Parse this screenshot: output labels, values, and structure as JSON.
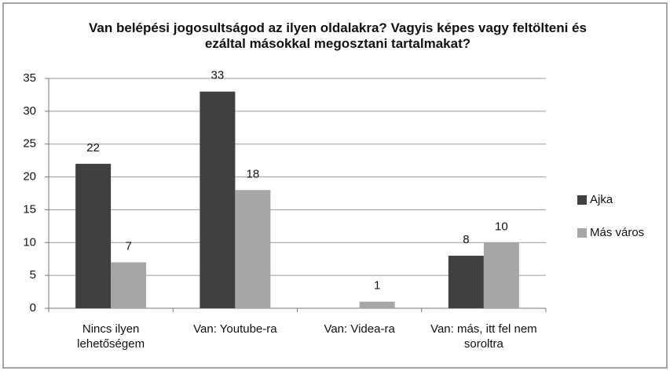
{
  "chart_data": {
    "type": "bar",
    "title": "Van belépési jogosultságod az ilyen oldalakra? Vagyis képes vagy feltölteni és ezáltal másokkal megosztani tartalmakat?",
    "categories": [
      "Nincs ilyen lehetőségem",
      "Van: Youtube-ra",
      "Van: Videa-ra",
      "Van: más, itt fel nem soroltra"
    ],
    "series": [
      {
        "name": "Ajka",
        "color": "#404040",
        "values": [
          22,
          33,
          null,
          8
        ]
      },
      {
        "name": "Más város",
        "color": "#a6a6a6",
        "values": [
          7,
          18,
          1,
          10
        ]
      }
    ],
    "ylim": [
      0,
      35
    ],
    "yticks": [
      0,
      5,
      10,
      15,
      20,
      25,
      30,
      35
    ],
    "grid": true,
    "legend": "right"
  }
}
